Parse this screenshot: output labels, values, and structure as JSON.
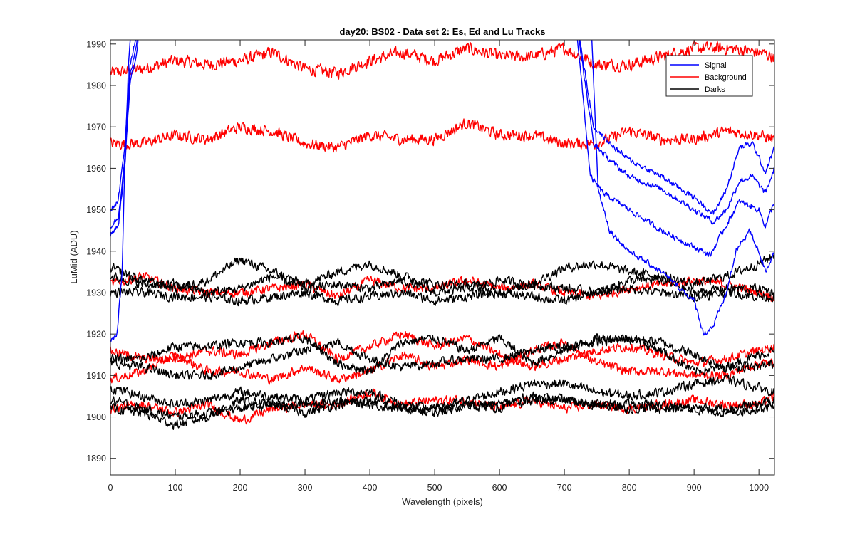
{
  "chart_data": {
    "type": "line",
    "title": "day20: BS02 - Data set 2: Es, Ed and Lu Tracks",
    "xlabel": "Wavelength (pixels)",
    "ylabel": "LuMid (ADU)",
    "xlim": [
      0,
      1024
    ],
    "ylim": [
      1886,
      1991
    ],
    "xticks": [
      0,
      100,
      200,
      300,
      400,
      500,
      600,
      700,
      800,
      900,
      1000
    ],
    "yticks": [
      1890,
      1900,
      1910,
      1920,
      1930,
      1940,
      1950,
      1960,
      1970,
      1980,
      1990
    ],
    "grid": false,
    "legend_position": "top-right",
    "legend": [
      {
        "label": "Signal",
        "color": "#0000ff"
      },
      {
        "label": "Background",
        "color": "#ff0000"
      },
      {
        "label": "Darks",
        "color": "#000000"
      }
    ],
    "series": [
      {
        "group": "Background",
        "color": "#ff0000",
        "noise": 1.3,
        "x": [
          0,
          50,
          100,
          150,
          200,
          250,
          300,
          350,
          400,
          450,
          500,
          550,
          600,
          650,
          700,
          750,
          800,
          850,
          900,
          950,
          1000,
          1024
        ],
        "y": [
          1983,
          1984,
          1986,
          1985,
          1986,
          1988,
          1984,
          1983,
          1986,
          1988,
          1986,
          1989,
          1987,
          1987,
          1989,
          1985,
          1985,
          1987,
          1989,
          1989,
          1988,
          1987
        ]
      },
      {
        "group": "Background",
        "color": "#ff0000",
        "noise": 1.2,
        "x": [
          0,
          50,
          100,
          150,
          200,
          250,
          300,
          350,
          400,
          450,
          500,
          550,
          600,
          650,
          700,
          750,
          800,
          850,
          900,
          950,
          1000,
          1024
        ],
        "y": [
          1966,
          1966,
          1968,
          1967,
          1970,
          1969,
          1966,
          1965,
          1968,
          1967,
          1967,
          1971,
          1968,
          1968,
          1966,
          1966,
          1969,
          1967,
          1967,
          1969,
          1968,
          1967
        ]
      },
      {
        "group": "Background",
        "color": "#ff0000",
        "noise": 1.0,
        "x": [
          0,
          50,
          100,
          150,
          200,
          250,
          300,
          350,
          400,
          450,
          500,
          550,
          600,
          650,
          700,
          750,
          800,
          850,
          900,
          950,
          1000,
          1024
        ],
        "y": [
          1932,
          1934,
          1931,
          1930,
          1930,
          1931,
          1932,
          1929,
          1933,
          1931,
          1931,
          1933,
          1931,
          1932,
          1930,
          1929,
          1931,
          1932,
          1933,
          1932,
          1930,
          1929
        ]
      },
      {
        "group": "Background",
        "color": "#ff0000",
        "noise": 1.0,
        "x": [
          0,
          50,
          100,
          150,
          200,
          250,
          300,
          350,
          400,
          450,
          500,
          550,
          600,
          650,
          700,
          750,
          800,
          850,
          900,
          950,
          1000,
          1024
        ],
        "y": [
          1916,
          1914,
          1914,
          1916,
          1915,
          1918,
          1920,
          1914,
          1917,
          1920,
          1917,
          1919,
          1915,
          1912,
          1914,
          1916,
          1917,
          1915,
          1913,
          1914,
          1916,
          1917
        ]
      },
      {
        "group": "Background",
        "color": "#ff0000",
        "noise": 1.0,
        "x": [
          0,
          50,
          100,
          150,
          200,
          250,
          300,
          350,
          400,
          450,
          500,
          550,
          600,
          650,
          700,
          750,
          800,
          850,
          900,
          950,
          1000,
          1024
        ],
        "y": [
          1909,
          1911,
          1915,
          1911,
          1911,
          1909,
          1912,
          1909,
          1911,
          1915,
          1912,
          1914,
          1912,
          1916,
          1918,
          1913,
          1911,
          1911,
          1910,
          1910,
          1913,
          1913
        ]
      },
      {
        "group": "Background",
        "color": "#ff0000",
        "noise": 1.0,
        "x": [
          0,
          50,
          100,
          150,
          200,
          250,
          300,
          350,
          400,
          450,
          500,
          550,
          600,
          650,
          700,
          750,
          800,
          850,
          900,
          950,
          1000,
          1024
        ],
        "y": [
          1902,
          1903,
          1901,
          1903,
          1899,
          1902,
          1903,
          1903,
          1906,
          1903,
          1904,
          1904,
          1902,
          1904,
          1902,
          1903,
          1902,
          1903,
          1904,
          1903,
          1903,
          1905
        ]
      },
      {
        "group": "Darks",
        "color": "#000000",
        "noise": 1.0,
        "x": [
          0,
          50,
          100,
          150,
          200,
          250,
          300,
          350,
          400,
          450,
          500,
          550,
          600,
          650,
          700,
          750,
          800,
          850,
          900,
          950,
          1000,
          1024
        ],
        "y": [
          1936,
          1933,
          1931,
          1933,
          1938,
          1935,
          1932,
          1935,
          1937,
          1934,
          1932,
          1932,
          1930,
          1932,
          1936,
          1937,
          1935,
          1934,
          1932,
          1934,
          1937,
          1939
        ]
      },
      {
        "group": "Darks",
        "color": "#000000",
        "noise": 1.0,
        "x": [
          0,
          50,
          100,
          150,
          200,
          250,
          300,
          350,
          400,
          450,
          500,
          550,
          600,
          650,
          700,
          750,
          800,
          850,
          900,
          950,
          1000,
          1024
        ],
        "y": [
          1934,
          1932,
          1932,
          1930,
          1931,
          1934,
          1931,
          1932,
          1931,
          1933,
          1930,
          1931,
          1933,
          1932,
          1931,
          1930,
          1933,
          1933,
          1930,
          1931,
          1931,
          1930
        ]
      },
      {
        "group": "Darks",
        "color": "#000000",
        "noise": 1.0,
        "x": [
          0,
          50,
          100,
          150,
          200,
          250,
          300,
          350,
          400,
          450,
          500,
          550,
          600,
          650,
          700,
          750,
          800,
          850,
          900,
          950,
          1000,
          1024
        ],
        "y": [
          1930,
          1930,
          1929,
          1929,
          1928,
          1929,
          1930,
          1928,
          1929,
          1930,
          1928,
          1929,
          1930,
          1929,
          1928,
          1930,
          1931,
          1930,
          1929,
          1930,
          1929,
          1929
        ]
      },
      {
        "group": "Darks",
        "color": "#000000",
        "noise": 1.0,
        "x": [
          0,
          50,
          100,
          150,
          200,
          250,
          300,
          350,
          400,
          450,
          500,
          550,
          600,
          650,
          700,
          750,
          800,
          850,
          900,
          950,
          1000,
          1024
        ],
        "y": [
          1914,
          1914,
          1917,
          1917,
          1918,
          1918,
          1919,
          1913,
          1911,
          1918,
          1919,
          1916,
          1919,
          1913,
          1916,
          1919,
          1919,
          1916,
          1911,
          1912,
          1915,
          1916
        ]
      },
      {
        "group": "Darks",
        "color": "#000000",
        "noise": 1.0,
        "x": [
          0,
          50,
          100,
          150,
          200,
          250,
          300,
          350,
          400,
          450,
          500,
          550,
          600,
          650,
          700,
          750,
          800,
          850,
          900,
          950,
          1000,
          1024
        ],
        "y": [
          1913,
          1912,
          1910,
          1910,
          1912,
          1914,
          1916,
          1918,
          1914,
          1912,
          1913,
          1914,
          1914,
          1916,
          1917,
          1918,
          1919,
          1918,
          1915,
          1912,
          1912,
          1913
        ]
      },
      {
        "group": "Darks",
        "color": "#000000",
        "noise": 1.0,
        "x": [
          0,
          50,
          100,
          150,
          200,
          250,
          300,
          350,
          400,
          450,
          500,
          550,
          600,
          650,
          700,
          750,
          800,
          850,
          900,
          950,
          1000,
          1024
        ],
        "y": [
          1907,
          1905,
          1903,
          1904,
          1906,
          1905,
          1904,
          1906,
          1906,
          1903,
          1902,
          1904,
          1906,
          1908,
          1908,
          1906,
          1905,
          1906,
          1908,
          1909,
          1907,
          1906
        ]
      },
      {
        "group": "Darks",
        "color": "#000000",
        "noise": 1.0,
        "x": [
          0,
          50,
          100,
          150,
          200,
          250,
          300,
          350,
          400,
          450,
          500,
          550,
          600,
          650,
          700,
          750,
          800,
          850,
          900,
          950,
          1000,
          1024
        ],
        "y": [
          1902,
          1901,
          1898,
          1900,
          1904,
          1903,
          1901,
          1903,
          1904,
          1902,
          1901,
          1903,
          1903,
          1905,
          1904,
          1903,
          1903,
          1903,
          1902,
          1902,
          1903,
          1904
        ]
      },
      {
        "group": "Darks",
        "color": "#000000",
        "noise": 1.0,
        "x": [
          0,
          50,
          100,
          150,
          200,
          250,
          300,
          350,
          400,
          450,
          500,
          550,
          600,
          650,
          700,
          750,
          800,
          850,
          900,
          950,
          1000,
          1024
        ],
        "y": [
          1904,
          1902,
          1900,
          1901,
          1902,
          1903,
          1903,
          1904,
          1903,
          1902,
          1902,
          1903,
          1902,
          1904,
          1904,
          1903,
          1902,
          1902,
          1902,
          1901,
          1902,
          1903
        ]
      },
      {
        "group": "Signal",
        "color": "#0000ff",
        "noise": 0.6,
        "x": [
          0,
          10,
          18,
          22,
          28,
          35,
          740,
          752,
          770,
          800,
          850,
          900,
          915,
          930,
          950,
          965,
          985,
          1000,
          1010,
          1024
        ],
        "y": [
          1918,
          1920,
          1935,
          1960,
          1985,
          2000,
          2000,
          1955,
          1945,
          1940,
          1935,
          1928,
          1920,
          1922,
          1930,
          1940,
          1945,
          1940,
          1935,
          1940
        ]
      },
      {
        "group": "Signal",
        "color": "#0000ff",
        "noise": 0.6,
        "x": [
          0,
          12,
          22,
          30,
          40,
          50,
          715,
          730,
          745,
          770,
          800,
          850,
          900,
          930,
          950,
          970,
          990,
          1010,
          1024
        ],
        "y": [
          1946,
          1948,
          1962,
          1982,
          1990,
          2000,
          2000,
          1985,
          1970,
          1966,
          1962,
          1958,
          1953,
          1949,
          1955,
          1965,
          1966,
          1959,
          1965
        ]
      },
      {
        "group": "Signal",
        "color": "#0000ff",
        "noise": 0.6,
        "x": [
          0,
          12,
          22,
          30,
          40,
          50,
          715,
          730,
          745,
          770,
          800,
          850,
          900,
          930,
          950,
          970,
          990,
          1010,
          1024
        ],
        "y": [
          1944,
          1946,
          1960,
          1980,
          1988,
          2000,
          2000,
          1983,
          1966,
          1962,
          1958,
          1955,
          1950,
          1947,
          1950,
          1957,
          1958,
          1954,
          1960
        ]
      },
      {
        "group": "Signal",
        "color": "#0000ff",
        "noise": 0.6,
        "x": [
          0,
          12,
          22,
          30,
          40,
          50,
          715,
          730,
          740,
          760,
          800,
          850,
          900,
          925,
          945,
          970,
          1000,
          1010,
          1024
        ],
        "y": [
          1950,
          1952,
          1965,
          1985,
          1992,
          2000,
          2000,
          1975,
          1958,
          1954,
          1950,
          1945,
          1941,
          1939,
          1945,
          1952,
          1950,
          1946,
          1952
        ]
      }
    ]
  }
}
